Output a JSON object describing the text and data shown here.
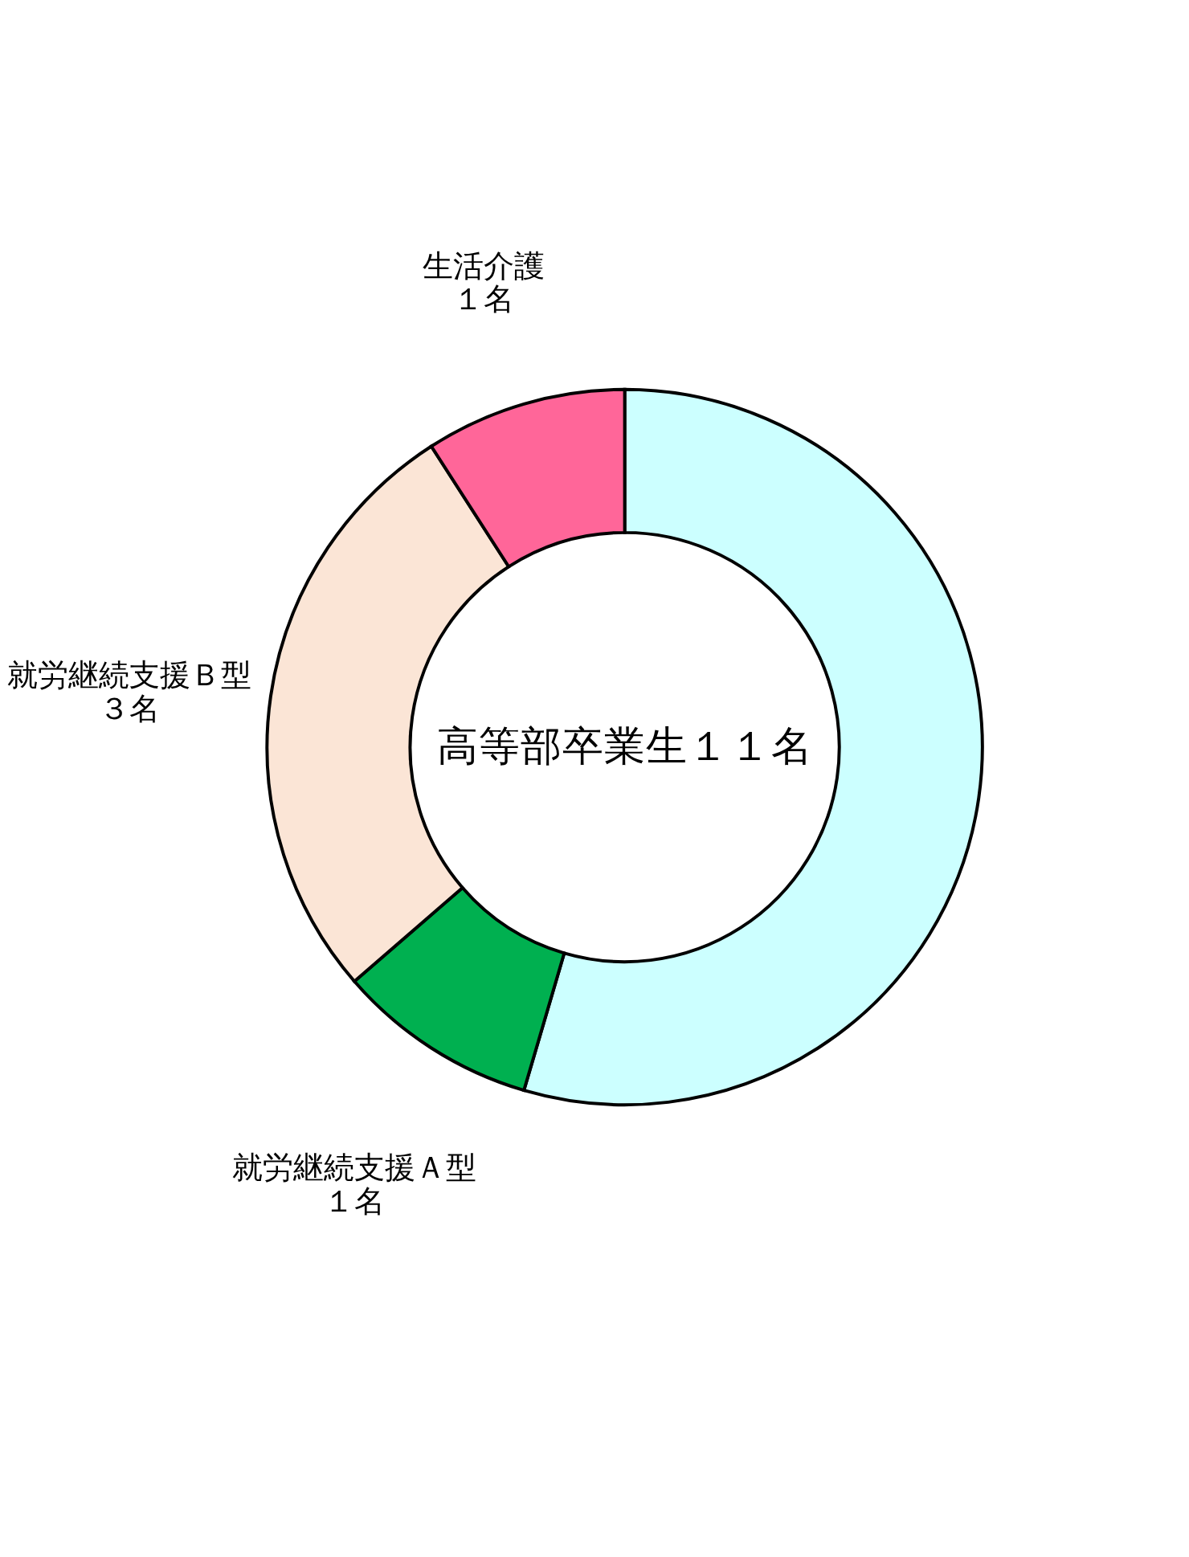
{
  "chart_data": {
    "type": "donut",
    "title": "高等部卒業生１１名",
    "categories": [
      null,
      "就労継続支援Ａ型",
      "就労継続支援Ｂ型",
      "生活介護"
    ],
    "values": [
      6,
      1,
      3,
      1
    ],
    "colors": [
      "#ccffff",
      "#00b050",
      "#fbe5d6",
      "#ff6699"
    ],
    "value_labels": [
      null,
      "１名",
      "３名",
      "１名"
    ],
    "legend": false
  }
}
